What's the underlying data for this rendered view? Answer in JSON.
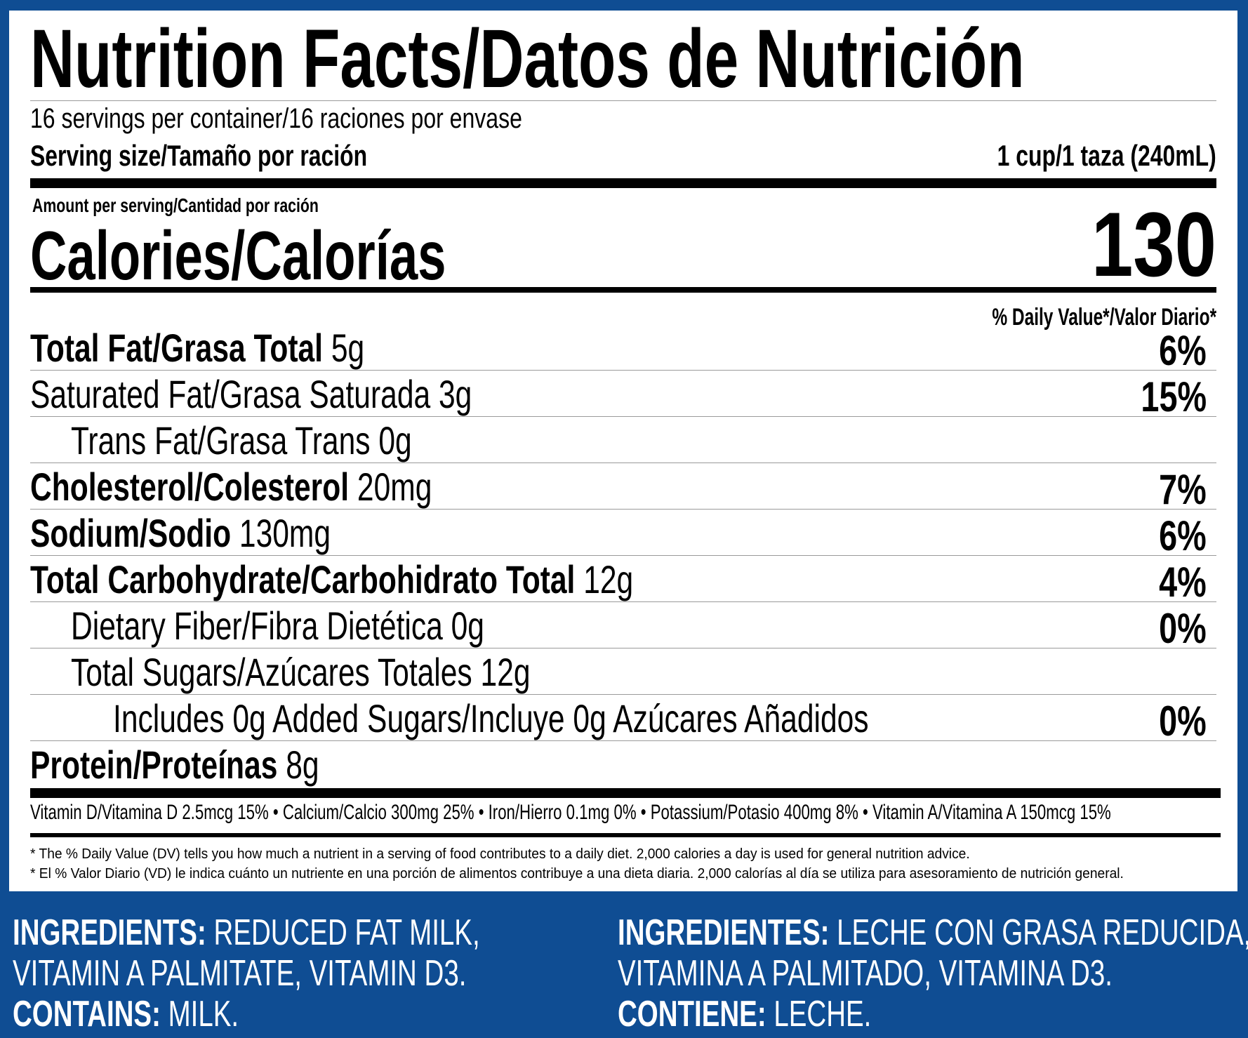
{
  "title": "Nutrition Facts/Datos de Nutrición",
  "servings_per_container": "16 servings per container/16 raciones por envase",
  "serving_size_label": "Serving size/Tamaño por ración",
  "serving_size_value": "1 cup/1 taza (240mL)",
  "amount_per_serving": "Amount per serving/Cantidad por ración",
  "calories_label": "Calories/Calorías",
  "calories_value": "130",
  "daily_value_header": "% Daily Value*/Valor Diario*",
  "nutrients": [
    {
      "label": "Total Fat/Grasa Total",
      "amount": "5g",
      "dv": "6%"
    },
    {
      "label": "Saturated Fat/Grasa Saturada",
      "amount": "3g",
      "dv": "15%"
    },
    {
      "label": "Trans Fat/Grasa Trans",
      "amount": "0g",
      "dv": ""
    },
    {
      "label": "Cholesterol/Colesterol",
      "amount": "20mg",
      "dv": "7%"
    },
    {
      "label": "Sodium/Sodio",
      "amount": "130mg",
      "dv": "6%"
    },
    {
      "label": "Total Carbohydrate/Carbohidrato Total",
      "amount": "12g",
      "dv": "4%"
    },
    {
      "label": "Dietary Fiber/Fibra Dietética",
      "amount": "0g",
      "dv": "0%"
    },
    {
      "label": "Total Sugars/Azúcares Totales",
      "amount": "12g",
      "dv": ""
    },
    {
      "label": "Includes 0g Added Sugars/Incluye 0g Azúcares Añadidos",
      "amount": "",
      "dv": "0%"
    },
    {
      "label": "Protein/Proteínas",
      "amount": "8g",
      "dv": ""
    }
  ],
  "vitamins_line": "Vitamin D/Vitamina D 2.5mcg 15% • Calcium/Calcio 300mg 25% • Iron/Hierro 0.1mg 0% • Potassium/Potasio 400mg 8% • Vitamin A/Vitamina A 150mcg 15%",
  "footnote_en": "*  The % Daily Value (DV) tells you how much a nutrient in a serving of food contributes to a daily diet. 2,000 calories a day is used for general nutrition advice.",
  "footnote_es": "*  El % Valor Diario (VD) le indica cuánto un nutriente en una porción de alimentos contribuye a una dieta diaria. 2,000 calorías al día se utiliza para asesoramiento de nutrición general.",
  "ingredients_en": {
    "ingredients_label": "INGREDIENTS:",
    "ingredients_line1": "REDUCED FAT MILK,",
    "ingredients_line2": "VITAMIN A PALMITATE, VITAMIN D3.",
    "contains_label": "CONTAINS:",
    "contains_value": "MILK."
  },
  "ingredients_es": {
    "ingredients_label": "INGREDIENTES:",
    "ingredients_line1": "LECHE CON GRASA REDUCIDA,",
    "ingredients_line2": "VITAMINA A PALMITADO, VITAMINA D3.",
    "contains_label": "CONTIENE:",
    "contains_value": "LECHE."
  },
  "colors": {
    "background_blue": "#0f4d93",
    "panel": "#ffffff",
    "text": "#000000"
  }
}
